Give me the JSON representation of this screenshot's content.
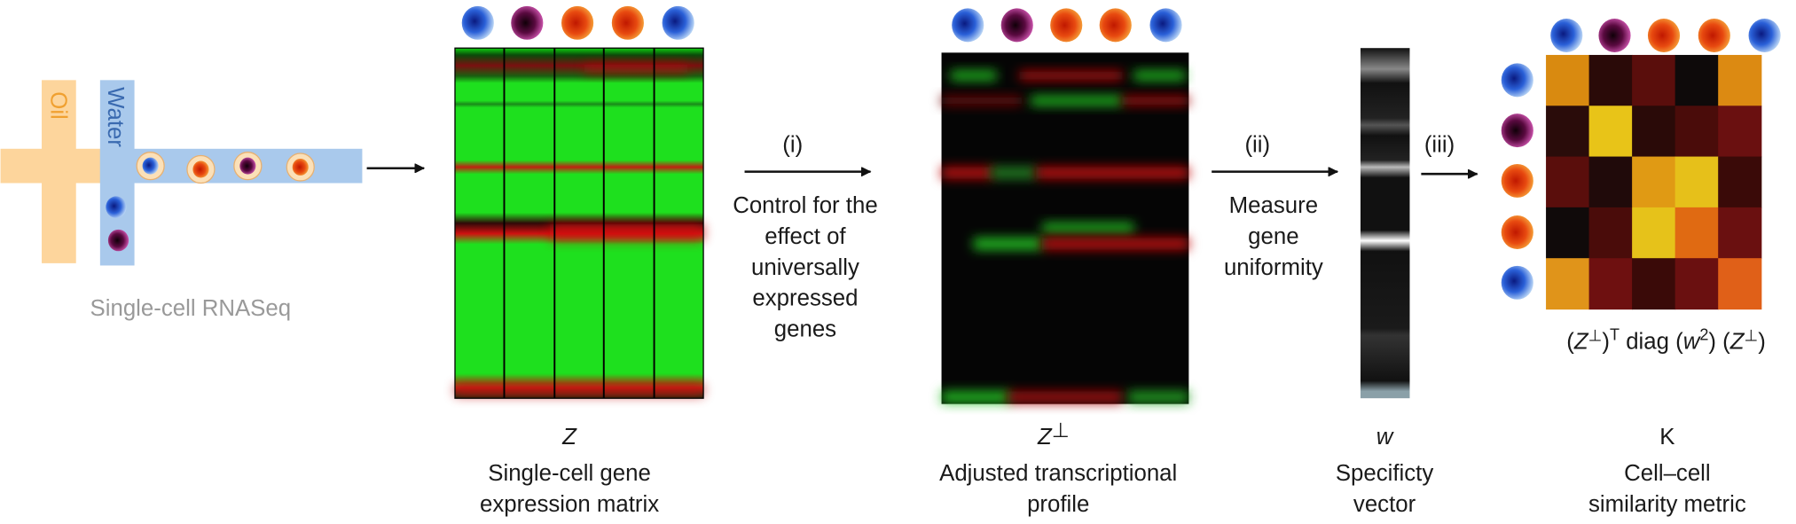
{
  "microfluidics": {
    "oil_label": "Oil",
    "water_label": "Water",
    "caption": "Single-cell RNASeq"
  },
  "steps": [
    {
      "label": "(i)",
      "lines": [
        "Control for the",
        "effect of",
        "universally",
        "expressed",
        "genes"
      ]
    },
    {
      "label": "(ii)",
      "lines": [
        "Measure",
        "gene",
        "uniformity"
      ]
    },
    {
      "label": "(iii)"
    }
  ],
  "panels": [
    {
      "symbol": "Z",
      "caption": [
        "Single-cell gene",
        "expression matrix"
      ]
    },
    {
      "symbol": "Z",
      "symbol_sup": "⊥",
      "caption": [
        "Adjusted transcriptional",
        "profile"
      ]
    },
    {
      "symbol": "w",
      "caption": [
        "Specificty",
        "vector"
      ]
    },
    {
      "symbol": "K",
      "caption": [
        "Cell–cell",
        "similarity metric"
      ]
    }
  ],
  "formula": [
    "(",
    "Z",
    "⊥",
    ")",
    "T",
    " diag (",
    "w",
    "2",
    ") (",
    "Z",
    "⊥",
    ")"
  ]
}
